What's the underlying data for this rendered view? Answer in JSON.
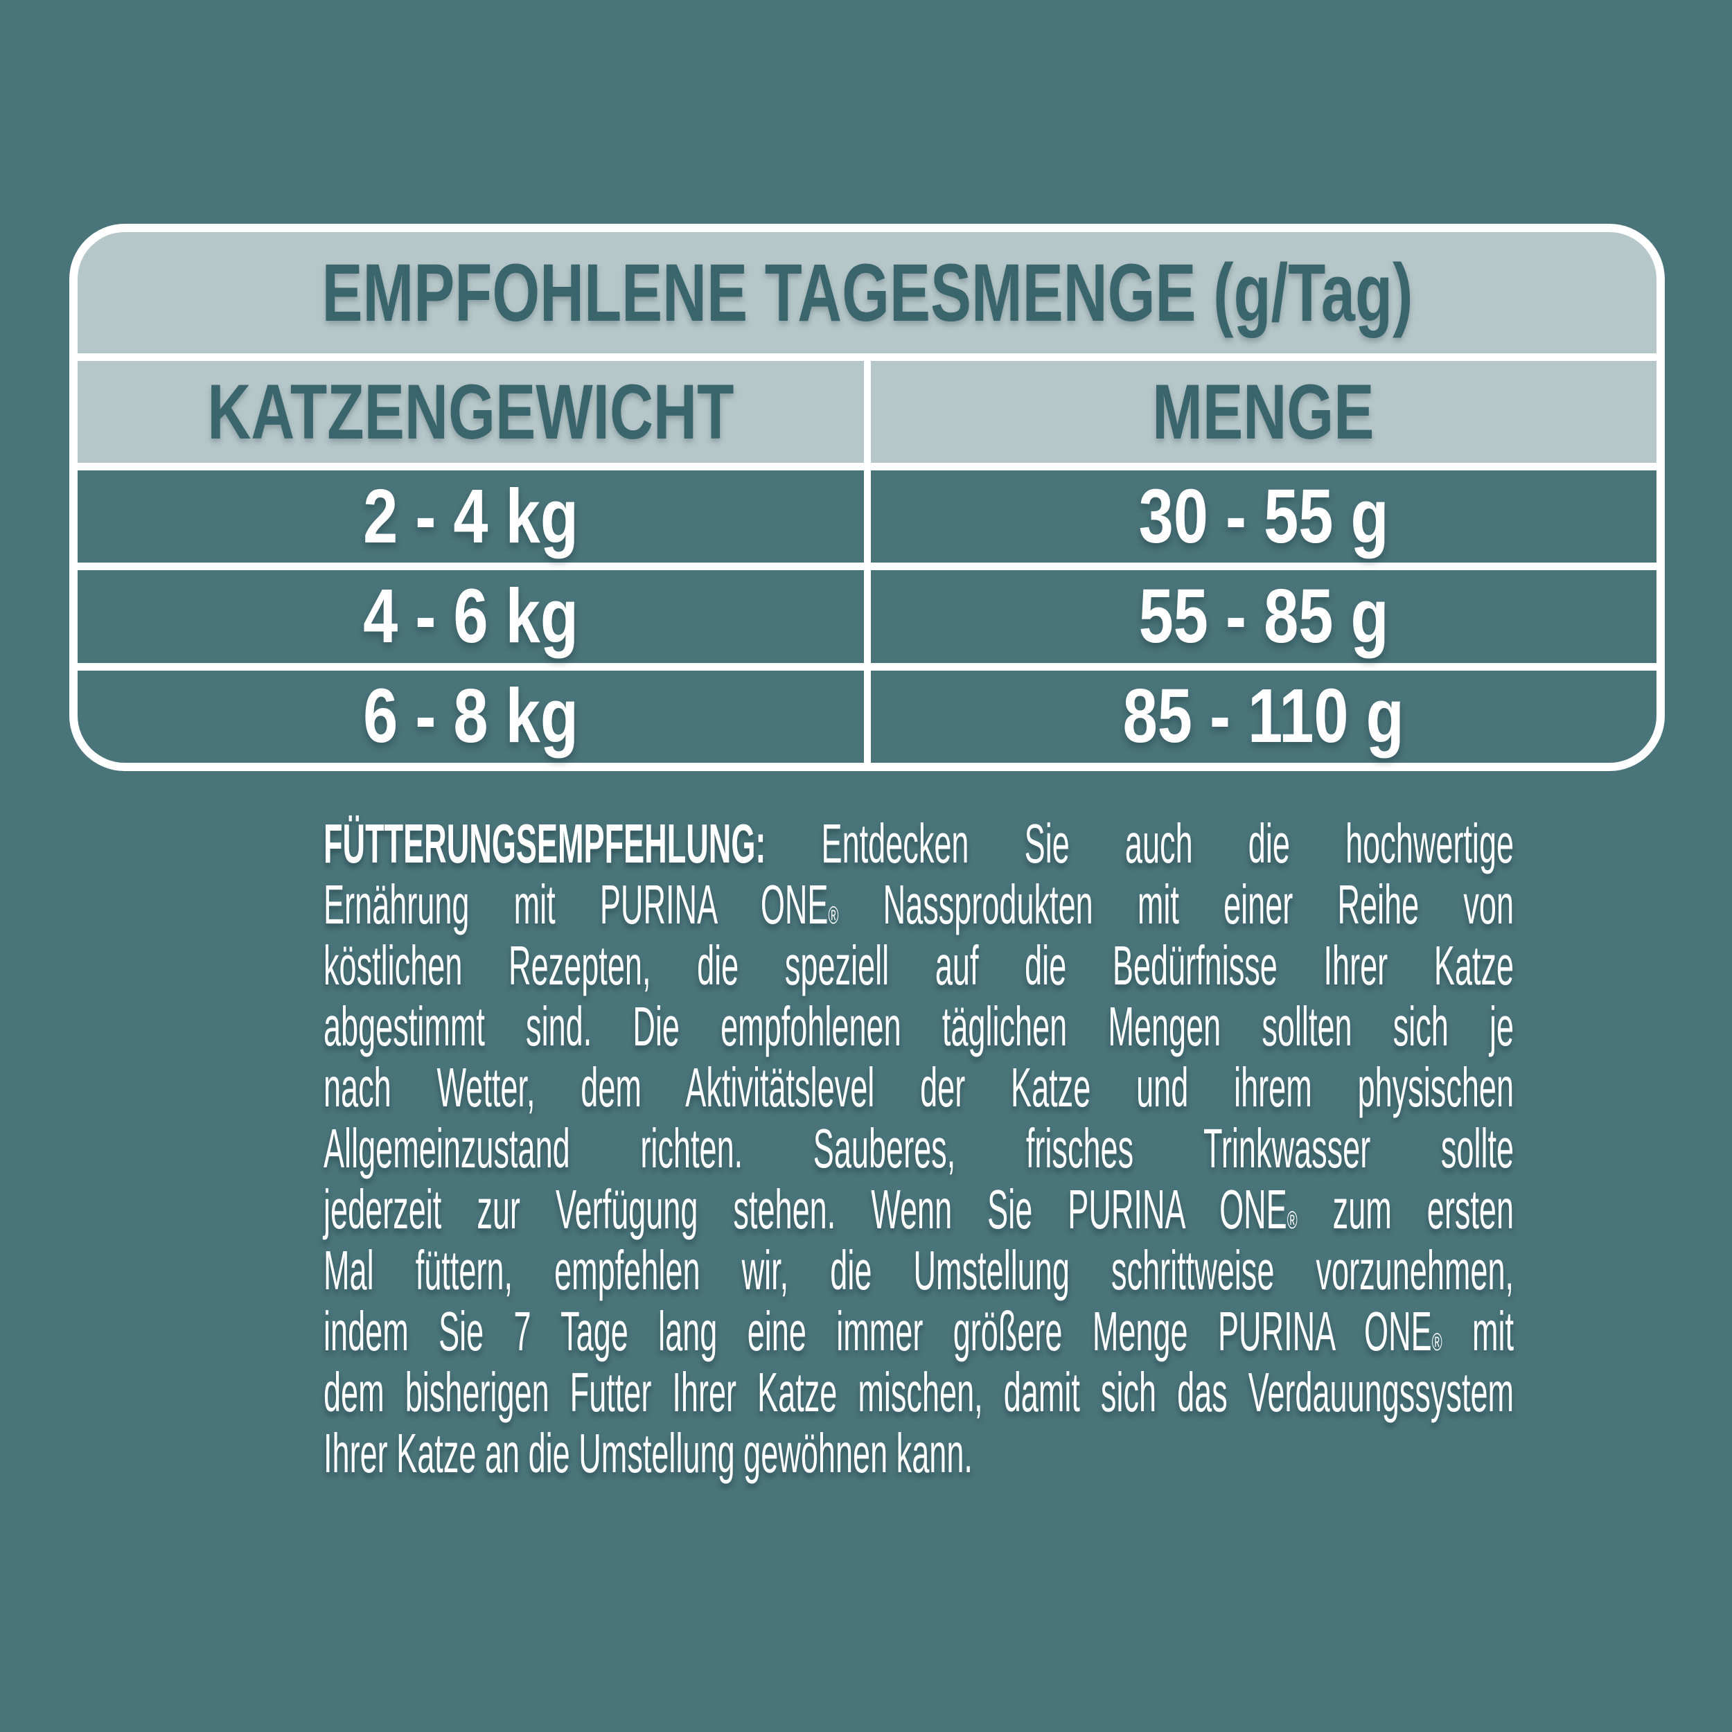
{
  "colors": {
    "page_background": "#49747A",
    "table_frame": "#FFFFFF",
    "band_fill": "#B6C7C9",
    "heading_text": "#3B656C",
    "row_fill": "#49747A",
    "body_text": "#FFFFFF"
  },
  "table": {
    "title": "EMPFOHLENE TAGESMENGE (g/Tag)",
    "columns": [
      {
        "label": "KATZENGEWICHT"
      },
      {
        "label": "MENGE"
      }
    ],
    "rows": [
      {
        "weight": "2 - 4 kg",
        "amount": "30 - 55 g"
      },
      {
        "weight": "4 - 6 kg",
        "amount": "55 - 85 g"
      },
      {
        "weight": "6 - 8 kg",
        "amount": "85 - 110 g"
      }
    ]
  },
  "paragraph": {
    "lines": [
      [
        {
          "t": "FÜTTERUNGSEMPFEHLUNG:",
          "b": true
        },
        {
          "t": " Entdecken Sie auch die hochwertige"
        }
      ],
      [
        {
          "t": "Ernährung mit PURINA ONE"
        },
        {
          "t": "®",
          "sup": true
        },
        {
          "t": " Nassprodukten mit einer Reihe von"
        }
      ],
      [
        {
          "t": "köstlichen Rezepten, die speziell auf die Bedürfnisse Ihrer Katze"
        }
      ],
      [
        {
          "t": "abgestimmt sind. Die empfohlenen täglichen Mengen sollten sich je"
        }
      ],
      [
        {
          "t": "nach Wetter, dem Aktivitätslevel der Katze und ihrem physischen"
        }
      ],
      [
        {
          "t": "Allgemeinzustand richten. Sauberes, frisches Trinkwasser sollte"
        }
      ],
      [
        {
          "t": "jederzeit zur Verfügung stehen. Wenn Sie PURINA ONE"
        },
        {
          "t": "®",
          "sup": true
        },
        {
          "t": " zum ersten"
        }
      ],
      [
        {
          "t": "Mal füttern, empfehlen wir, die Umstellung schrittweise vorzunehmen,"
        }
      ],
      [
        {
          "t": "indem Sie 7 Tage lang eine immer größere Menge PURINA ONE"
        },
        {
          "t": "®",
          "sup": true
        },
        {
          "t": " mit"
        }
      ],
      [
        {
          "t": "dem bisherigen Futter Ihrer Katze mischen, damit sich das Verdauungssystem"
        }
      ],
      [
        {
          "t": "Ihrer Katze an die Umstellung gewöhnen kann."
        }
      ]
    ]
  }
}
